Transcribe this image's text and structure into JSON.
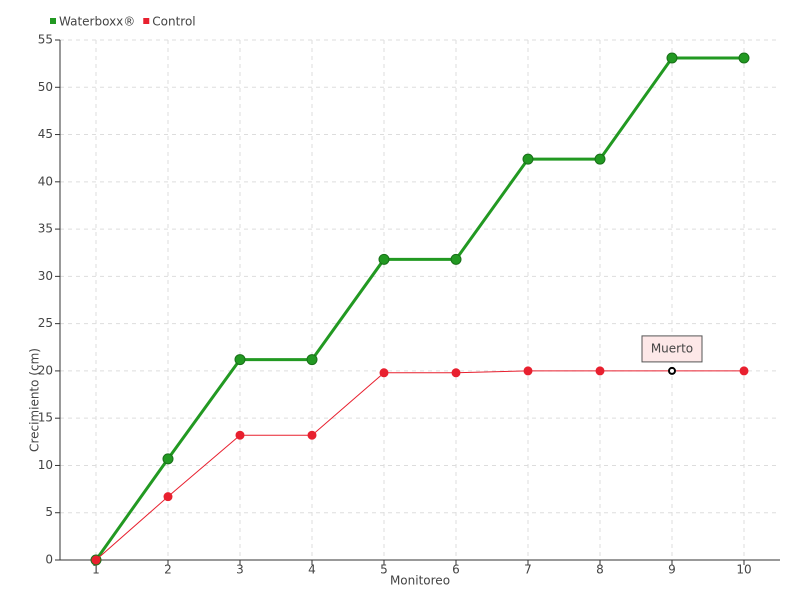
{
  "chart_data": {
    "type": "line",
    "x_label": "Monitoreo",
    "y_label": "Crecimiento (cm)",
    "x": [
      1,
      2,
      3,
      4,
      5,
      6,
      7,
      8,
      9,
      10
    ],
    "xlim": [
      0.5,
      10.5
    ],
    "xticks": [
      1,
      2,
      3,
      4,
      5,
      6,
      7,
      8,
      9,
      10
    ],
    "ylim": [
      0,
      55
    ],
    "yticks": [
      0,
      5,
      10,
      15,
      20,
      25,
      30,
      35,
      40,
      45,
      50,
      55
    ],
    "grid": true,
    "legend": "top-left",
    "series": [
      {
        "name": "Waterboxx®",
        "color": "#229922",
        "values": [
          0,
          10.7,
          21.2,
          21.2,
          31.8,
          31.8,
          42.4,
          42.4,
          53.1,
          53.1
        ]
      },
      {
        "name": "Control",
        "color": "#e8202f",
        "values": [
          0,
          6.7,
          13.2,
          13.2,
          19.8,
          19.8,
          20,
          20,
          20,
          20
        ],
        "point_labels": [
          null,
          null,
          null,
          null,
          null,
          null,
          null,
          null,
          "Muerto",
          null
        ]
      }
    ]
  }
}
